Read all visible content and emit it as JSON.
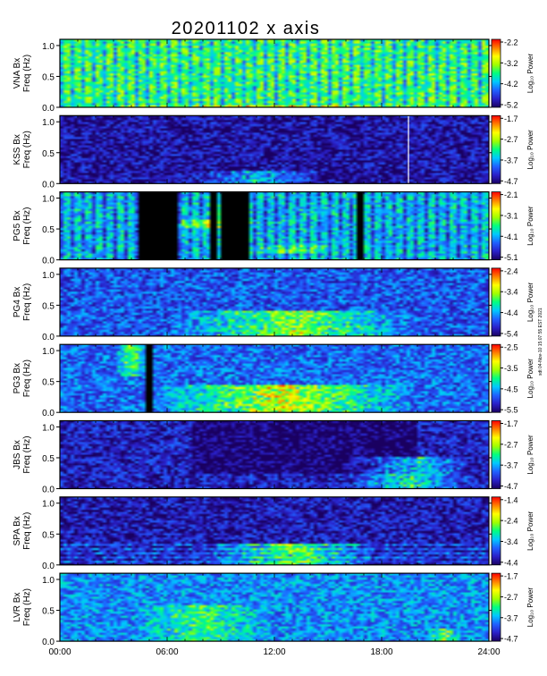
{
  "title": "20201102  x axis",
  "side_note": "sdt 04-Nov-10 15:07:55 EST 2021",
  "chart_data": {
    "type": "heatmap",
    "x_ticks": [
      "00:00",
      "06:00",
      "12:00",
      "18:00",
      "24:00"
    ],
    "xlim_hours": [
      0,
      24
    ],
    "ylabel_line2": "Freq (Hz)",
    "y_ticks": [
      "0.0",
      "0.5",
      "1.0"
    ],
    "ylim_hz": [
      0,
      1.1
    ],
    "colorbar_label": "Log₁₀ Power",
    "colormap": [
      "#1a0060",
      "#2a20c8",
      "#2060ff",
      "#00c8ff",
      "#00ff80",
      "#a0ff00",
      "#ffff00",
      "#ff8000",
      "#ff0000"
    ],
    "panels": [
      {
        "station": "VNA Bx",
        "cbar": [
          "-2.2",
          "-3.2",
          "-4.2",
          "-5.2"
        ],
        "base": 0.55,
        "events": [
          {
            "h0": 0,
            "h1": 24,
            "f0": 0,
            "f1": 0.05,
            "amp": 0.25
          }
        ],
        "gaps": [],
        "vstripes": true
      },
      {
        "station": "KSS Bx",
        "cbar": [
          "-1.7",
          "-2.7",
          "-3.7",
          "-4.7"
        ],
        "base": 0.08,
        "events": [
          {
            "h0": 7,
            "h1": 15,
            "f0": 0,
            "f1": 0.2,
            "amp": 0.3
          }
        ],
        "gaps": [],
        "white_lines": [
          19.5
        ]
      },
      {
        "station": "PG5 Bx",
        "cbar": [
          "-2.1",
          "-3.1",
          "-4.1",
          "-5.1"
        ],
        "base": 0.4,
        "events": [
          {
            "h0": 6,
            "h1": 11,
            "f0": 0.5,
            "f1": 0.65,
            "amp": 0.35
          },
          {
            "h0": 10.5,
            "h1": 16,
            "f0": 0.1,
            "f1": 0.25,
            "amp": 0.25
          }
        ],
        "gaps": [
          [
            4.5,
            6.5
          ],
          [
            8.5,
            8.7
          ],
          [
            9,
            10.7
          ],
          [
            16.6,
            17
          ]
        ],
        "vstripes": true
      },
      {
        "station": "PG4 Bx",
        "cbar": [
          "-2.4",
          "-3.4",
          "-4.4",
          "-5.4"
        ],
        "base": 0.22,
        "events": [
          {
            "h0": 6,
            "h1": 20,
            "f0": 0,
            "f1": 0.4,
            "amp": 0.45
          }
        ],
        "gaps": []
      },
      {
        "station": "PG3 Bx",
        "cbar": [
          "-2.5",
          "-3.5",
          "-4.5",
          "-5.5"
        ],
        "base": 0.25,
        "events": [
          {
            "h0": 5,
            "h1": 20,
            "f0": 0,
            "f1": 0.45,
            "amp": 0.5
          },
          {
            "h0": 3,
            "h1": 5,
            "f0": 0.6,
            "f1": 1.1,
            "amp": 0.35
          }
        ],
        "gaps": [
          [
            4.9,
            5.1
          ]
        ]
      },
      {
        "station": "JBS Bx",
        "cbar": [
          "-1.7",
          "-2.7",
          "-3.7",
          "-4.7"
        ],
        "base": 0.12,
        "events": [
          {
            "h0": 16,
            "h1": 23,
            "f0": 0,
            "f1": 0.5,
            "amp": 0.4
          }
        ],
        "gaps": [],
        "dark_block": [
          7.3,
          20
        ]
      },
      {
        "station": "SPA Bx",
        "cbar": [
          "-1.4",
          "-2.4",
          "-3.4",
          "-4.4"
        ],
        "base": 0.1,
        "events": [
          {
            "h0": 8,
            "h1": 18,
            "f0": 0,
            "f1": 0.35,
            "amp": 0.45
          }
        ],
        "gaps": [],
        "hbands": true
      },
      {
        "station": "LVR Bx",
        "cbar": [
          "-1.7",
          "-2.7",
          "-3.7",
          "-4.7"
        ],
        "base": 0.3,
        "events": [
          {
            "h0": 4,
            "h1": 12,
            "f0": 0,
            "f1": 0.6,
            "amp": 0.25
          },
          {
            "h0": 20.5,
            "h1": 22.5,
            "f0": 0,
            "f1": 0.2,
            "amp": 0.35
          }
        ],
        "gaps": []
      }
    ]
  }
}
